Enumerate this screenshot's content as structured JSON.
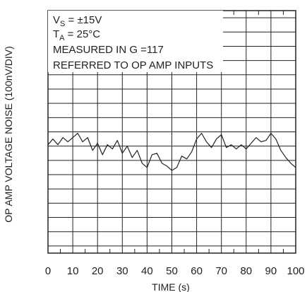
{
  "chart_data": {
    "type": "line",
    "title": "",
    "xlabel": "TIME (s)",
    "ylabel": "OP AMP VOLTAGE NOISE (100nV/DIV)",
    "xlim": [
      0,
      100
    ],
    "ylim": [
      -7.5,
      9.5
    ],
    "x_ticks": [
      "0",
      "10",
      "20",
      "30",
      "40",
      "50",
      "60",
      "70",
      "80",
      "90",
      "100"
    ],
    "grid": true,
    "annotations": [
      {
        "id": "vs",
        "main": "V",
        "sub": "S",
        "rest": " = ±15V"
      },
      {
        "id": "ta",
        "main": "T",
        "sub": "A",
        "rest": " = 25°C"
      },
      {
        "id": "measured",
        "text": "MEASURED IN G =117"
      },
      {
        "id": "referred",
        "text": "REFERRED TO OP AMP INPUTS"
      }
    ],
    "series": [
      {
        "name": "",
        "color": "#222222",
        "x": [
          0,
          2,
          4,
          6,
          8,
          10,
          12,
          14,
          16,
          18,
          20,
          22,
          24,
          26,
          28,
          30,
          32,
          34,
          36,
          38,
          40,
          42,
          44,
          46,
          48,
          50,
          52,
          54,
          56,
          58,
          60,
          62,
          64,
          66,
          68,
          70,
          72,
          74,
          76,
          78,
          80,
          82,
          84,
          86,
          88,
          90,
          92,
          94,
          96,
          98,
          100
        ],
        "y": [
          0.1,
          0.5,
          0.1,
          0.6,
          0.3,
          0.6,
          0.9,
          0.3,
          0.6,
          -0.3,
          0.2,
          -0.6,
          0.1,
          -0.2,
          0.4,
          -0.5,
          0.0,
          -0.8,
          -0.3,
          -1.2,
          -1.5,
          -0.6,
          -0.5,
          -1.2,
          -1.4,
          -1.7,
          -1.5,
          -0.7,
          -0.9,
          -0.4,
          0.5,
          0.9,
          0.3,
          -0.1,
          0.5,
          0.8,
          -0.1,
          0.1,
          -0.2,
          0.1,
          -0.2,
          0.2,
          0.6,
          0.3,
          0.4,
          0.9,
          0.5,
          -0.3,
          -0.8,
          -1.2,
          -1.5
        ]
      }
    ]
  }
}
